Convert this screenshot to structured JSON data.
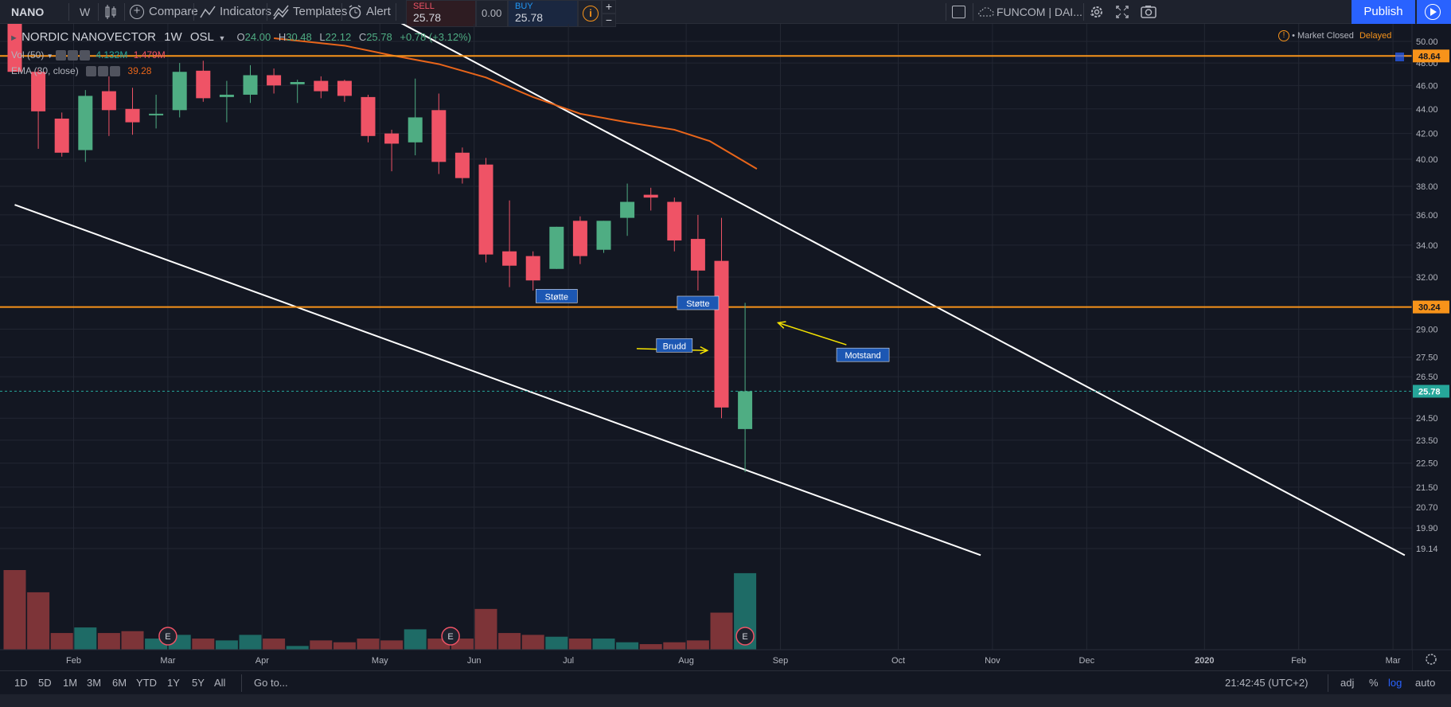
{
  "toolbar": {
    "symbol": "NANO",
    "interval": "W",
    "compare": "Compare",
    "indicators": "Indicators",
    "templates": "Templates",
    "alert": "Alert",
    "sell_label": "SELL",
    "sell_price": "25.78",
    "spread": "0.00",
    "buy_label": "BUY",
    "buy_price": "25.78",
    "plus": "+",
    "minus": "−",
    "layout_name": "FUNCOM | DAI...",
    "publish": "Publish"
  },
  "legend": {
    "title": "NORDIC NANOVECTOR",
    "interval": "1W",
    "exchange": "OSL",
    "open_label": "O",
    "open": "24.00",
    "high_label": "H",
    "high": "30.48",
    "low_label": "L",
    "low": "22.12",
    "close_label": "C",
    "close": "25.78",
    "change": "+0.78 (+3.12%)",
    "vol_label": "Vol (50)",
    "vol_value_1": "4.132M",
    "vol_value_2": "1.479M",
    "ema_label": "EMA (30, close)",
    "ema_value": "39.28",
    "market_status": "Market Closed",
    "delayed": "Delayed"
  },
  "bottom": {
    "ranges": [
      "1D",
      "5D",
      "1M",
      "3M",
      "6M",
      "YTD",
      "1Y",
      "5Y",
      "All"
    ],
    "goto": "Go to...",
    "time": "21:42:45 (UTC+2)",
    "adj": "adj",
    "pct": "%",
    "log": "log",
    "auto": "auto"
  },
  "colors": {
    "up": "#4fad83",
    "down": "#ef5366",
    "vol_up": "#1e6b66",
    "vol_down": "#7d3438",
    "ema": "#e8651a",
    "hline": "#f7931a",
    "trendline": "#ffffff",
    "arrow": "#f5e300",
    "label_bg": "#1c57b3",
    "accent": "#2962ff",
    "last_price": "#26a69a"
  },
  "chart_data": {
    "type": "candlestick",
    "scale": "log",
    "grid": true,
    "y_ticks": [
      50.0,
      48.0,
      46.0,
      44.0,
      42.0,
      40.0,
      38.0,
      36.0,
      34.0,
      32.0,
      29.0,
      27.5,
      26.5,
      24.5,
      23.5,
      22.5,
      21.5,
      20.7,
      19.9,
      19.14
    ],
    "y_tick_labels": [
      "50.00",
      "48.00",
      "46.00",
      "44.00",
      "42.00",
      "40.00",
      "38.00",
      "36.00",
      "34.00",
      "32.00",
      "29.00",
      "27.50",
      "26.50",
      "24.50",
      "23.50",
      "22.50",
      "21.50",
      "20.70",
      "19.90",
      "19.14"
    ],
    "x_labels": [
      {
        "label": "Feb",
        "week": 2.5
      },
      {
        "label": "Mar",
        "week": 6.5
      },
      {
        "label": "Apr",
        "week": 10.5
      },
      {
        "label": "May",
        "week": 15.5
      },
      {
        "label": "Jun",
        "week": 19.5
      },
      {
        "label": "Jul",
        "week": 23.5
      },
      {
        "label": "Aug",
        "week": 28.5
      },
      {
        "label": "Sep",
        "week": 32.5
      },
      {
        "label": "Oct",
        "week": 37.5
      },
      {
        "label": "Nov",
        "week": 41.5
      },
      {
        "label": "Dec",
        "week": 45.5
      },
      {
        "label": "2020",
        "week": 50.5
      },
      {
        "label": "Feb",
        "week": 54.5
      },
      {
        "label": "Mar",
        "week": 58.5
      }
    ],
    "candles": [
      {
        "o": 52.5,
        "h": 53.0,
        "l": 47.2,
        "c": 47.2,
        "v": 4.3
      },
      {
        "o": 47.2,
        "h": 47.5,
        "l": 40.8,
        "c": 43.8,
        "v": 3.1
      },
      {
        "o": 43.2,
        "h": 43.7,
        "l": 40.2,
        "c": 40.5,
        "v": 0.9
      },
      {
        "o": 40.7,
        "h": 45.6,
        "l": 39.8,
        "c": 45.1,
        "v": 1.2
      },
      {
        "o": 45.5,
        "h": 46.8,
        "l": 41.8,
        "c": 43.9,
        "v": 0.9
      },
      {
        "o": 44.0,
        "h": 45.8,
        "l": 41.9,
        "c": 42.9,
        "v": 1.0
      },
      {
        "o": 43.5,
        "h": 45.2,
        "l": 42.4,
        "c": 43.6,
        "v": 0.6
      },
      {
        "o": 43.9,
        "h": 48.0,
        "l": 43.3,
        "c": 47.2,
        "v": 0.8
      },
      {
        "o": 47.3,
        "h": 48.2,
        "l": 44.6,
        "c": 44.9,
        "v": 0.6
      },
      {
        "o": 45.0,
        "h": 46.4,
        "l": 42.9,
        "c": 45.2,
        "v": 0.5
      },
      {
        "o": 45.2,
        "h": 47.8,
        "l": 44.5,
        "c": 46.9,
        "v": 0.8
      },
      {
        "o": 46.9,
        "h": 47.5,
        "l": 45.3,
        "c": 46.0,
        "v": 0.6
      },
      {
        "o": 46.1,
        "h": 46.5,
        "l": 44.5,
        "c": 46.3,
        "v": 0.2
      },
      {
        "o": 46.4,
        "h": 46.8,
        "l": 44.9,
        "c": 45.5,
        "v": 0.5
      },
      {
        "o": 46.4,
        "h": 46.5,
        "l": 44.6,
        "c": 45.1,
        "v": 0.4
      },
      {
        "o": 45.0,
        "h": 45.2,
        "l": 41.3,
        "c": 41.8,
        "v": 0.6
      },
      {
        "o": 42.0,
        "h": 42.3,
        "l": 39.1,
        "c": 41.2,
        "v": 0.5
      },
      {
        "o": 41.3,
        "h": 46.6,
        "l": 40.3,
        "c": 43.3,
        "v": 1.1
      },
      {
        "o": 43.9,
        "h": 45.3,
        "l": 38.9,
        "c": 39.8,
        "v": 0.6
      },
      {
        "o": 40.5,
        "h": 40.9,
        "l": 38.2,
        "c": 38.6,
        "v": 0.6
      },
      {
        "o": 39.6,
        "h": 40.1,
        "l": 32.9,
        "c": 33.4,
        "v": 2.2
      },
      {
        "o": 33.6,
        "h": 37.0,
        "l": 31.4,
        "c": 32.7,
        "v": 0.9
      },
      {
        "o": 33.3,
        "h": 33.6,
        "l": 31.2,
        "c": 31.8,
        "v": 0.8
      },
      {
        "o": 32.5,
        "h": 35.2,
        "l": 32.5,
        "c": 35.2,
        "v": 0.7
      },
      {
        "o": 35.6,
        "h": 35.9,
        "l": 32.8,
        "c": 33.3,
        "v": 0.6
      },
      {
        "o": 33.7,
        "h": 35.6,
        "l": 33.5,
        "c": 35.6,
        "v": 0.6
      },
      {
        "o": 35.8,
        "h": 38.2,
        "l": 34.6,
        "c": 36.9,
        "v": 0.4
      },
      {
        "o": 37.4,
        "h": 37.9,
        "l": 36.3,
        "c": 37.2,
        "v": 0.3
      },
      {
        "o": 36.9,
        "h": 37.2,
        "l": 33.6,
        "c": 34.3,
        "v": 0.4
      },
      {
        "o": 34.4,
        "h": 36.0,
        "l": 31.2,
        "c": 32.4,
        "v": 0.5
      },
      {
        "o": 33.0,
        "h": 35.8,
        "l": 24.5,
        "c": 25.0,
        "v": 2.0
      },
      {
        "o": 24.0,
        "h": 30.48,
        "l": 22.12,
        "c": 25.78,
        "v": 4.132
      }
    ],
    "ema": [
      {
        "week": 11,
        "value": 50.3
      },
      {
        "week": 14,
        "value": 49.6
      },
      {
        "week": 16,
        "value": 48.7
      },
      {
        "week": 18,
        "value": 47.9
      },
      {
        "week": 20,
        "value": 46.7
      },
      {
        "week": 22,
        "value": 45.0
      },
      {
        "week": 24,
        "value": 43.6
      },
      {
        "week": 26,
        "value": 42.9
      },
      {
        "week": 28,
        "value": 42.3
      },
      {
        "week": 29.5,
        "value": 41.4
      },
      {
        "week": 31.5,
        "value": 39.28
      }
    ],
    "horizontal_lines": [
      {
        "price": 48.64,
        "label": "48.64"
      },
      {
        "price": 30.24,
        "label": "30.24"
      }
    ],
    "last_price": {
      "price": 25.78,
      "label": "25.78"
    },
    "trendlines": [
      {
        "w1": 15.4,
        "p1": 53.0,
        "w2": 59.0,
        "p2": 18.9
      },
      {
        "w1": 0.0,
        "p1": 36.7,
        "w2": 41.0,
        "p2": 18.9
      }
    ],
    "annotations": [
      {
        "text": "Støtte",
        "week": 23.0,
        "price": 30.85
      },
      {
        "text": "Støtte",
        "week": 29.0,
        "price": 30.45
      },
      {
        "text": "Brudd",
        "week": 28.0,
        "price": 28.1
      },
      {
        "text": "Motstand",
        "week": 36.0,
        "price": 27.6
      }
    ],
    "arrows": [
      {
        "w1": 26.4,
        "p1": 27.95,
        "w2": 29.4,
        "p2": 27.85
      },
      {
        "w1": 35.3,
        "p1": 28.15,
        "w2": 32.4,
        "p2": 29.35
      }
    ],
    "earnings_markers": [
      6.5,
      18.5,
      31.0
    ]
  }
}
